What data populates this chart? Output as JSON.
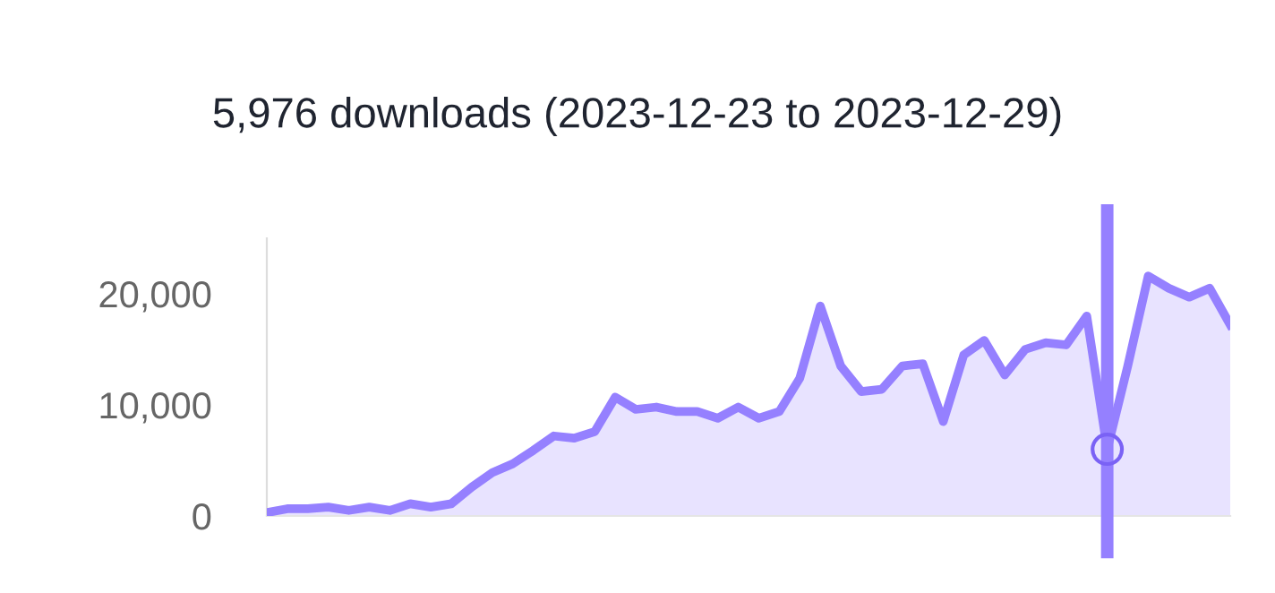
{
  "chart_data": {
    "type": "area",
    "title": "5,976 downloads (2023-12-23 to 2023-12-29)",
    "categories": [
      null,
      null,
      null,
      null,
      null,
      null,
      null,
      null,
      null,
      null,
      null,
      null,
      null,
      null,
      null,
      null,
      null,
      null,
      null,
      null,
      null,
      null,
      null,
      null,
      null,
      null,
      null,
      null,
      null,
      null,
      null,
      null,
      null,
      null,
      null,
      null,
      null,
      null,
      null,
      null,
      null,
      null,
      null,
      null,
      null,
      null,
      null,
      null
    ],
    "series": [
      {
        "color": "#9580ff",
        "values": [
          300,
          650,
          650,
          800,
          500,
          800,
          500,
          1100,
          800,
          1100,
          2600,
          3900,
          4700,
          5900,
          7200,
          7000,
          7600,
          10700,
          9600,
          9800,
          9400,
          9400,
          8800,
          9800,
          8800,
          9400,
          12400,
          18900,
          13500,
          11200,
          11400,
          13500,
          13700,
          8500,
          14500,
          15800,
          12700,
          15000,
          15600,
          15400,
          18000,
          6000,
          13500,
          21600,
          20500,
          19700,
          20500,
          17200
        ]
      }
    ],
    "ylim": [
      0,
      25000
    ],
    "yticks": [
      0,
      {
        "value": 10000,
        "label": "10,000"
      },
      {
        "value": 20000,
        "label": "20,000"
      }
    ],
    "tick_labels": "y",
    "grid": false,
    "legend": false,
    "marker": "none"
  }
}
